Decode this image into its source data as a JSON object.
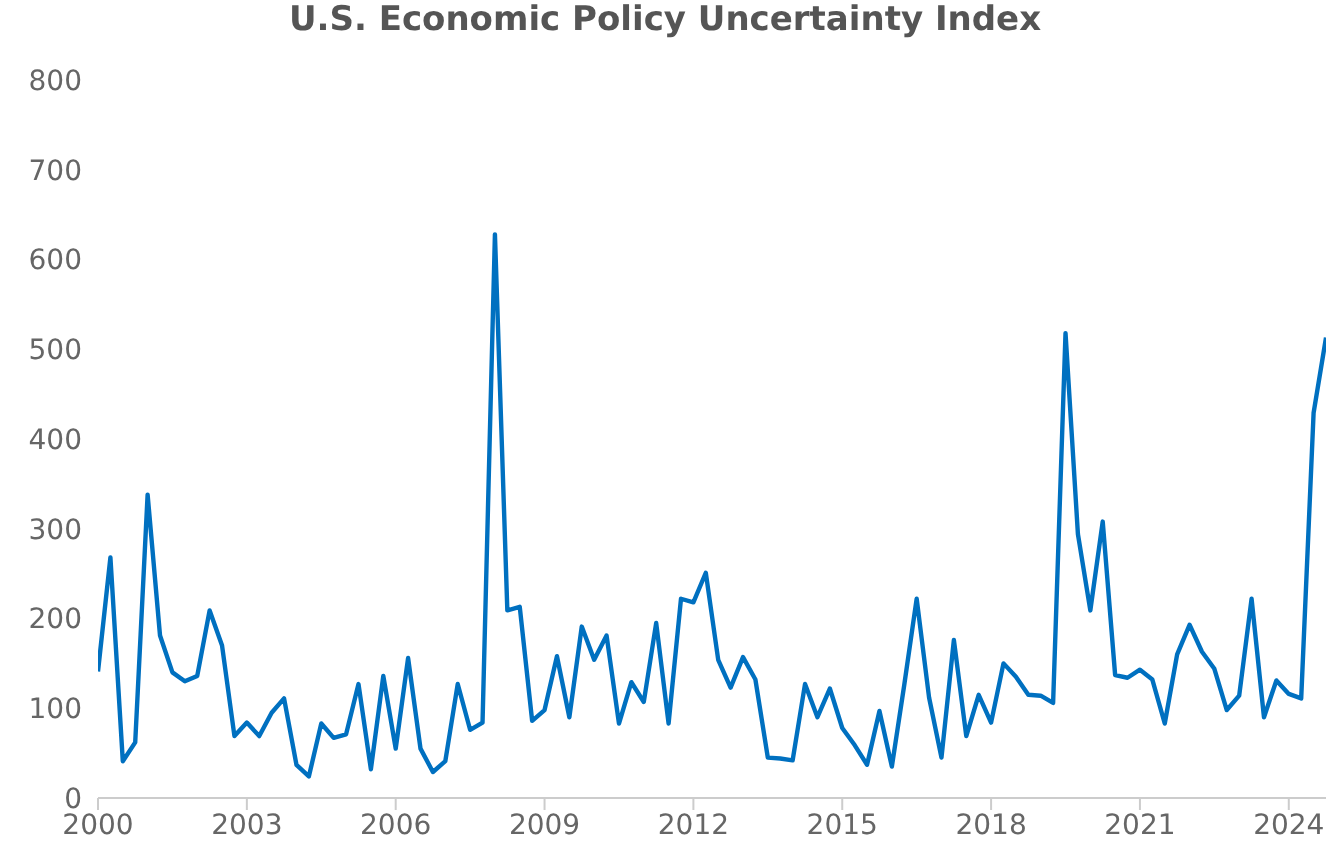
{
  "chart_data": {
    "type": "line",
    "title": "U.S. Economic Policy Uncertainty Index",
    "x": [
      2000,
      2000.25,
      2000.5,
      2000.75,
      2001,
      2001.25,
      2001.5,
      2001.75,
      2002,
      2002.25,
      2002.5,
      2002.75,
      2003,
      2003.25,
      2003.5,
      2003.75,
      2004,
      2004.25,
      2004.5,
      2004.75,
      2005,
      2005.25,
      2005.5,
      2005.75,
      2006,
      2006.25,
      2006.5,
      2006.75,
      2007,
      2007.25,
      2007.5,
      2007.75,
      2008,
      2008.25,
      2008.5,
      2008.75,
      2009,
      2009.25,
      2009.5,
      2009.75,
      2010,
      2010.25,
      2010.5,
      2010.75,
      2011,
      2011.25,
      2011.5,
      2011.75,
      2012,
      2012.25,
      2012.5,
      2012.75,
      2013,
      2013.25,
      2013.5,
      2013.75,
      2014,
      2014.25,
      2014.5,
      2014.75,
      2015,
      2015.25,
      2015.5,
      2015.75,
      2016,
      2016.25,
      2016.5,
      2016.75,
      2017,
      2017.25,
      2017.5,
      2017.75,
      2018,
      2018.25,
      2018.5,
      2018.75,
      2019,
      2019.25,
      2019.5,
      2019.75,
      2020,
      2020.25,
      2020.5,
      2020.75,
      2021,
      2021.25,
      2021.5,
      2021.75,
      2022,
      2022.25,
      2022.5,
      2022.75,
      2023,
      2023.25,
      2023.5,
      2023.75,
      2024,
      2024.25,
      2024.5,
      2024.75
    ],
    "series": [
      {
        "color": "#0070c0",
        "values": [
          141,
          268,
          41,
          62,
          338,
          181,
          140,
          130,
          136,
          209,
          170,
          69,
          84,
          69,
          95,
          111,
          37,
          24,
          83,
          67,
          71,
          127,
          32,
          136,
          55,
          156,
          55,
          29,
          41,
          127,
          76,
          84,
          628,
          209,
          213,
          86,
          98,
          158,
          90,
          191,
          154,
          181,
          83,
          129,
          107,
          195,
          83,
          222,
          218,
          251,
          154,
          123,
          157,
          132,
          45,
          44,
          42,
          127,
          90,
          122,
          78,
          59,
          37,
          97,
          35,
          126,
          222,
          112,
          45,
          176,
          69,
          115,
          84,
          150,
          135,
          115,
          114,
          106,
          518,
          294,
          209,
          308,
          137,
          134,
          143,
          132,
          83,
          160,
          193,
          163,
          144,
          98,
          114,
          222,
          90,
          131,
          116,
          111,
          429,
          513
        ]
      }
    ],
    "xlim": [
      2000,
      2024.75
    ],
    "xticks": [
      2000,
      2003,
      2006,
      2009,
      2012,
      2015,
      2018,
      2021,
      2024
    ],
    "ylim": [
      0,
      800
    ],
    "yticks": [
      0,
      100,
      200,
      300,
      400,
      500,
      600,
      700,
      800
    ],
    "grid": false,
    "legend": false,
    "marker": "none",
    "line_style": "solid"
  }
}
